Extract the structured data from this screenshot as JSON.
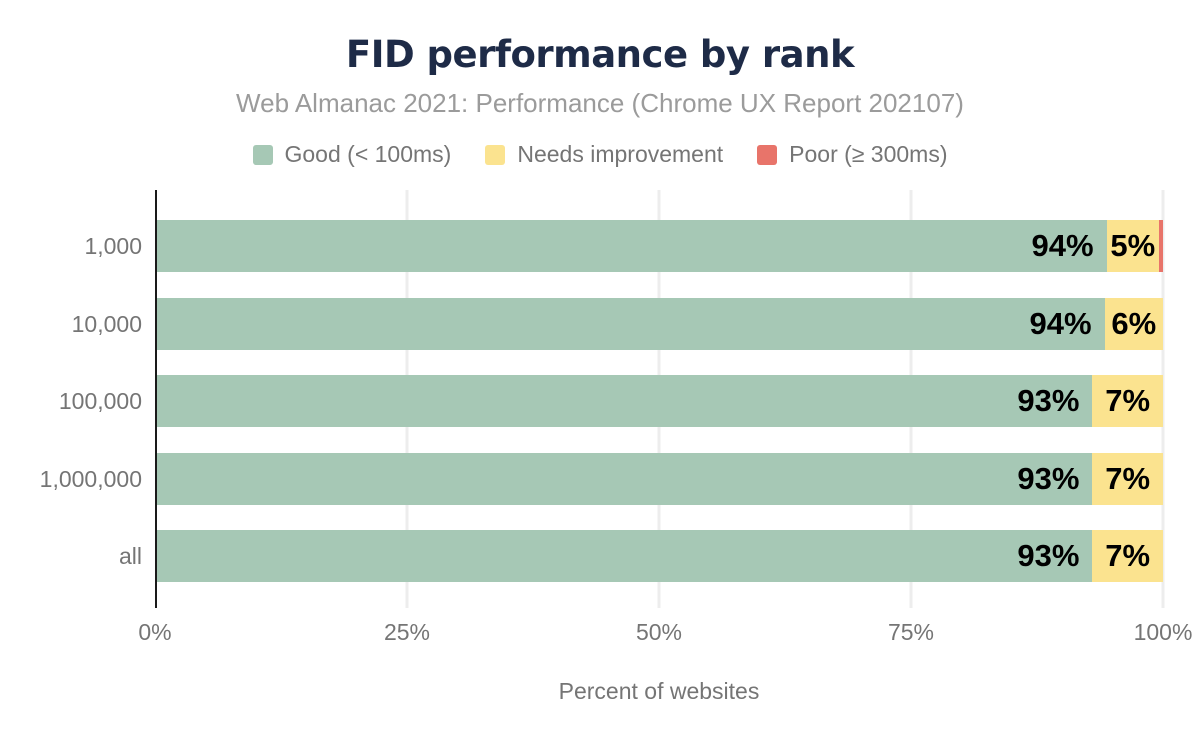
{
  "title": "FID performance by rank",
  "subtitle": "Web Almanac 2021: Performance (Chrome UX Report 202107)",
  "legend": [
    {
      "label": "Good (< 100ms)",
      "color": "#a6c8b5"
    },
    {
      "label": "Needs improvement",
      "color": "#fbe38f"
    },
    {
      "label": "Poor (≥ 300ms)",
      "color": "#e8746a"
    }
  ],
  "colors": {
    "title": "#1e2b47",
    "subtitle": "#9b9b9b",
    "axis_text": "#757575",
    "bar_label": "#000000",
    "gridline": "#ededed",
    "axis_line": "#1a1a1a",
    "background": "#ffffff",
    "good": "#a6c8b5",
    "needs_improvement": "#fbe38f",
    "poor": "#e8746a"
  },
  "chart_data": {
    "type": "bar",
    "orientation": "horizontal",
    "stacked": true,
    "title": "FID performance by rank",
    "subtitle": "Web Almanac 2021: Performance (Chrome UX Report 202107)",
    "categories": [
      "1,000",
      "10,000",
      "100,000",
      "1,000,000",
      "all"
    ],
    "series": [
      {
        "name": "Good (< 100ms)",
        "color": "#a6c8b5",
        "values": [
          94.4,
          94.2,
          93,
          93,
          93
        ],
        "labels": [
          "94%",
          "94%",
          "93%",
          "93%",
          "93%"
        ]
      },
      {
        "name": "Needs improvement",
        "color": "#fbe38f",
        "values": [
          5.2,
          5.8,
          7,
          7,
          7
        ],
        "labels": [
          "5%",
          "6%",
          "7%",
          "7%",
          "7%"
        ]
      },
      {
        "name": "Poor (≥ 300ms)",
        "color": "#e8746a",
        "values": [
          0.4,
          0,
          0,
          0,
          0
        ],
        "labels": [
          "",
          "",
          "",
          "",
          ""
        ]
      }
    ],
    "xlabel": "Percent of websites",
    "x_ticks": [
      "0%",
      "25%",
      "50%",
      "75%",
      "100%"
    ],
    "x_tick_positions": [
      0,
      25,
      50,
      75,
      100
    ],
    "xlim": [
      0,
      100
    ],
    "grid": true,
    "legend_position": "top"
  }
}
